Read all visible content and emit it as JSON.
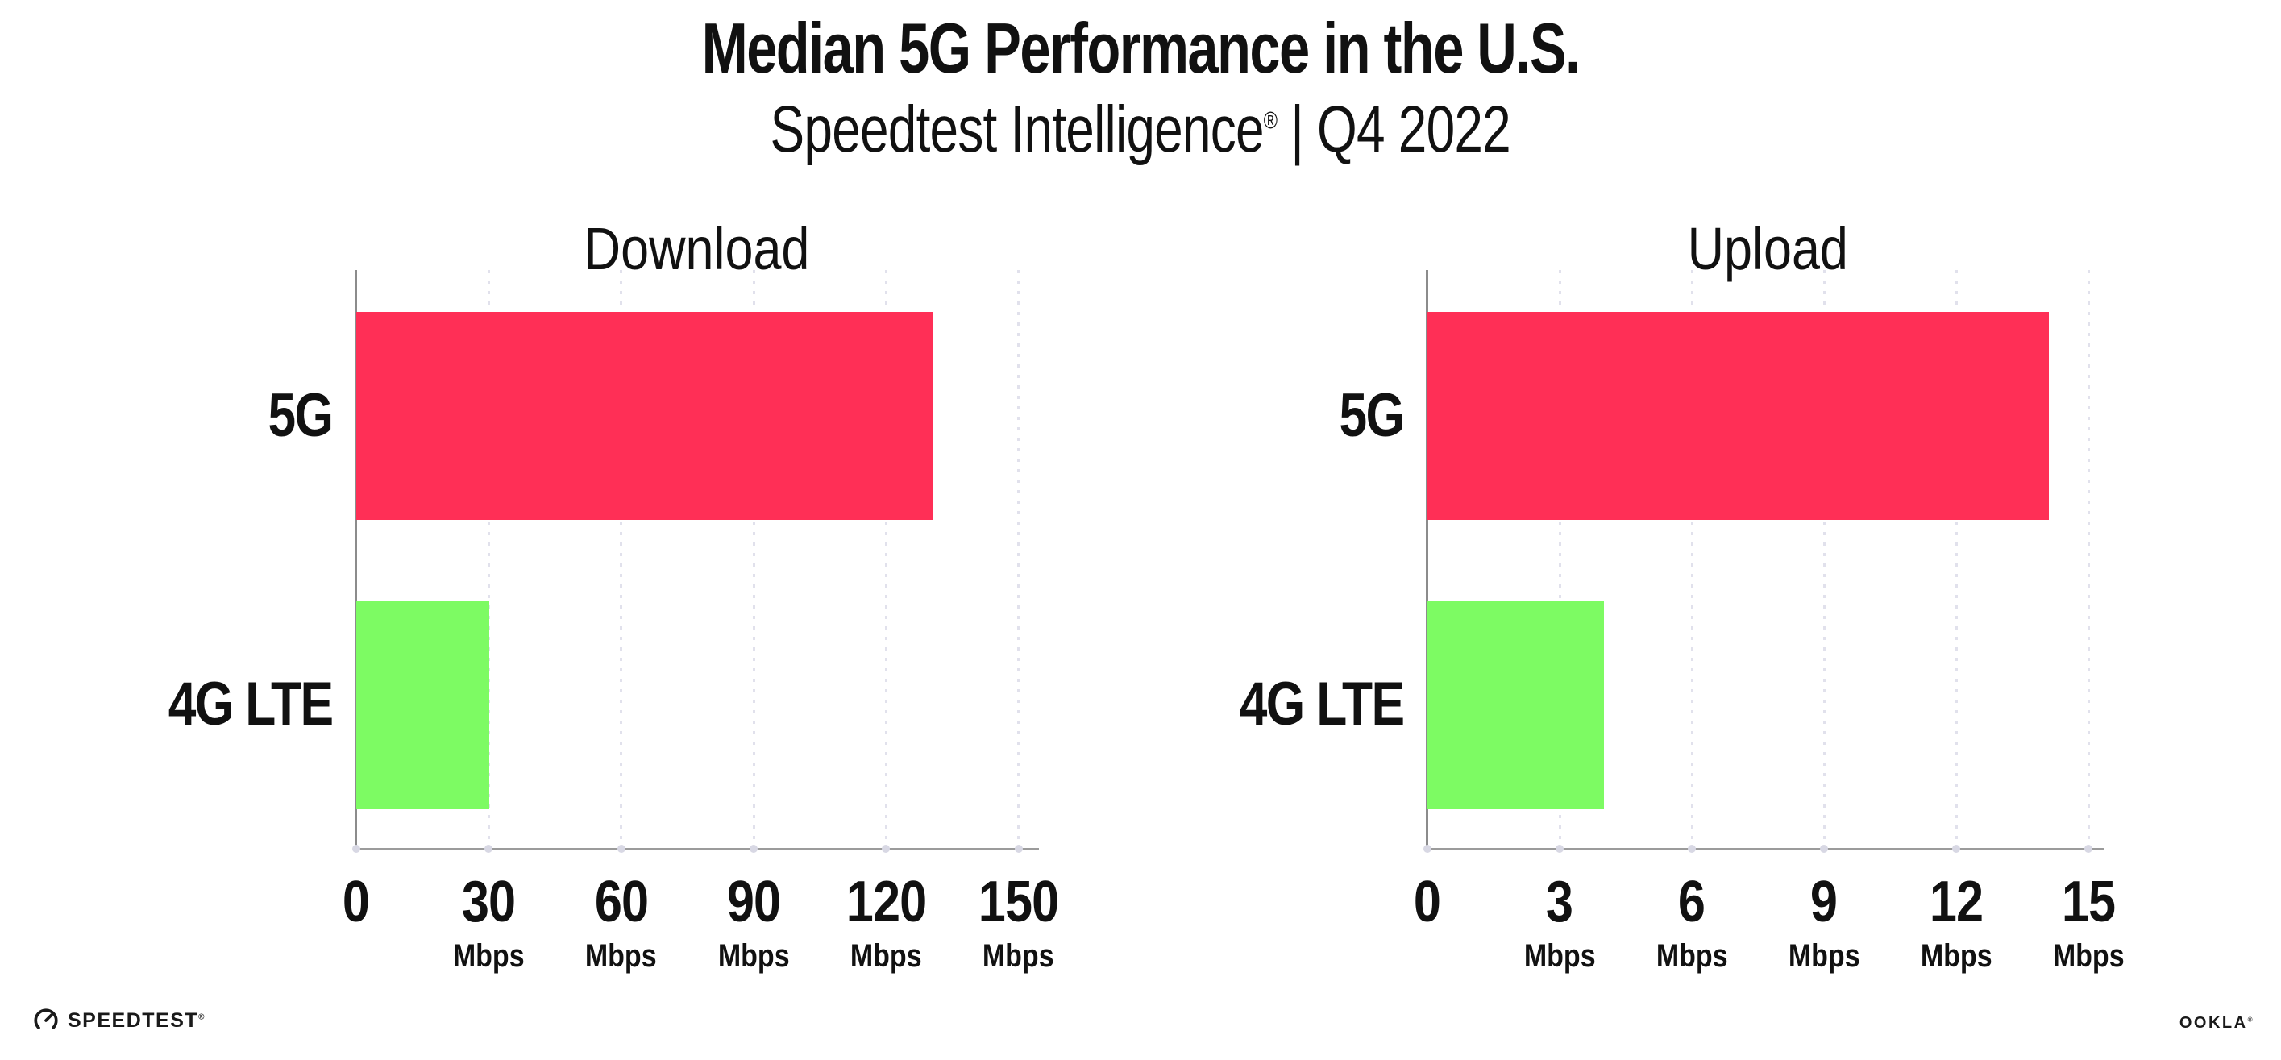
{
  "title": "Median 5G Performance in the U.S.",
  "subtitle": {
    "brand": "Speedtest Intelligence",
    "reg_mark": "®",
    "separator": " | ",
    "period": "Q4 2022"
  },
  "colors": {
    "bar_5g": "#ff2f56",
    "bar_4g": "#7dfb63",
    "gridline": "#e1e1ec",
    "y_axis": "#8c8c8c",
    "x_axis": "#9b9b9b",
    "tick_dot": "#d8d8e4",
    "text": "#111111"
  },
  "chart_data": [
    {
      "type": "bar",
      "orientation": "horizontal",
      "title": "Download",
      "categories": [
        "5G",
        "4G LTE"
      ],
      "values": [
        130.5,
        30.2
      ],
      "unit": "Mbps",
      "xticks": [
        0,
        30,
        60,
        90,
        120,
        150
      ],
      "tick_unit": "Mbps",
      "xlim": [
        0,
        155
      ],
      "grid": "vertical-dotted",
      "legend": "none",
      "bar_colors_by_category": {
        "5G": "#ff2f56",
        "4G LTE": "#7dfb63"
      }
    },
    {
      "type": "bar",
      "orientation": "horizontal",
      "title": "Upload",
      "categories": [
        "5G",
        "4G LTE"
      ],
      "values": [
        14.1,
        4.0
      ],
      "unit": "Mbps",
      "xticks": [
        0,
        3,
        6,
        9,
        12,
        15
      ],
      "tick_unit": "Mbps",
      "xlim": [
        0,
        15.4
      ],
      "grid": "vertical-dotted",
      "legend": "none",
      "bar_colors_by_category": {
        "5G": "#ff2f56",
        "4G LTE": "#7dfb63"
      }
    }
  ],
  "footer": {
    "speedtest_logo_text": "SPEEDTEST",
    "speedtest_reg_mark": "®",
    "ookla_logo_text": "OOKLA",
    "ookla_reg_mark": "®"
  }
}
